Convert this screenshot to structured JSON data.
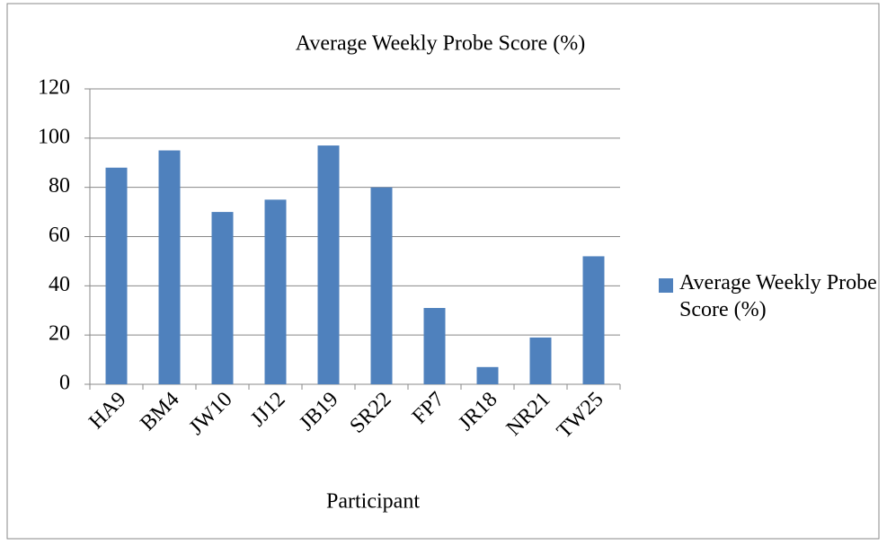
{
  "chart_data": {
    "type": "bar",
    "title": "Average Weekly Probe Score (%)",
    "x_label": "Participant",
    "categories": [
      "HA9",
      "BM4",
      "JW10",
      "JJ12",
      "JB19",
      "SR22",
      "FP7",
      "JR18",
      "NR21",
      "TW25"
    ],
    "series": [
      {
        "name": "Average Weekly Probe Score (%)",
        "color": "#4f81bd",
        "values": [
          88,
          95,
          70,
          75,
          97,
          80,
          31,
          7,
          19,
          52
        ]
      }
    ],
    "ylim": [
      0,
      120
    ],
    "yticks": [
      0,
      20,
      40,
      60,
      80,
      100,
      120
    ],
    "grid": true,
    "legend": "right"
  }
}
